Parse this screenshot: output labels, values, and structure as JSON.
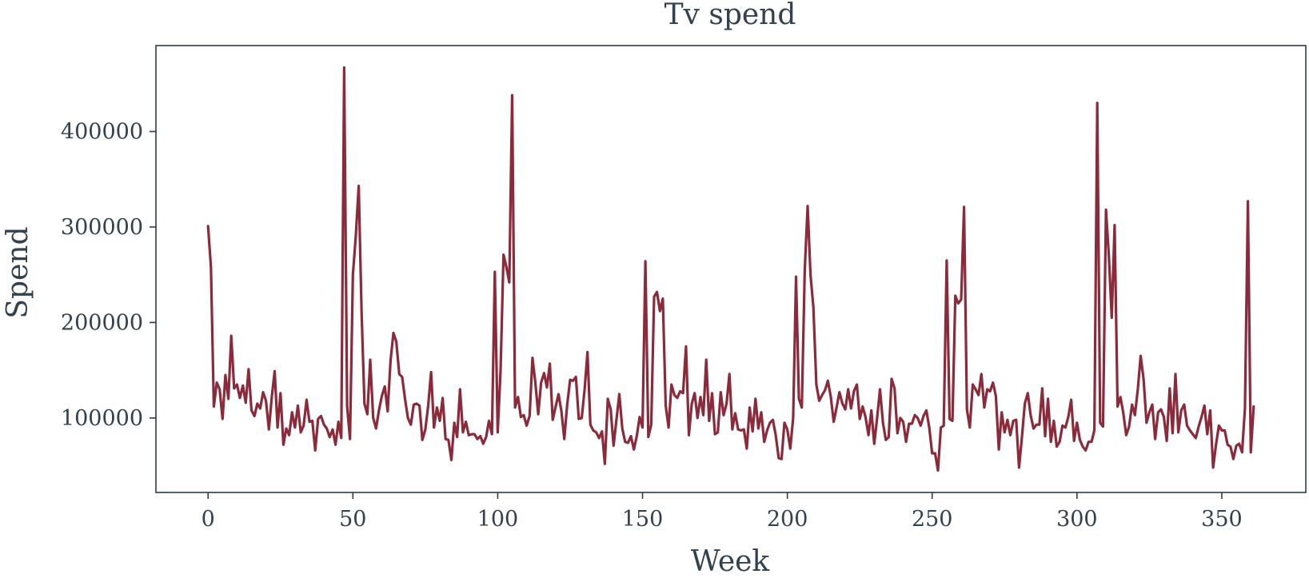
{
  "chart_data": {
    "type": "line",
    "title": "Tv spend",
    "xlabel": "Week",
    "ylabel": "Spend",
    "xlim": [
      -18,
      379
    ],
    "ylim": [
      22000,
      490000
    ],
    "xticks": [
      0,
      50,
      100,
      150,
      200,
      250,
      300,
      350
    ],
    "xtick_labels": [
      "0",
      "50",
      "100",
      "150",
      "200",
      "250",
      "300",
      "350"
    ],
    "yticks": [
      100000,
      200000,
      300000,
      400000
    ],
    "ytick_labels": [
      "100000",
      "200000",
      "300000",
      "400000"
    ],
    "grid": false,
    "colors": {
      "line": "#8b2a3a",
      "axis": "#2f3b48",
      "text": "#33414e"
    },
    "series": [
      {
        "x": [
          0,
          1,
          2,
          3,
          4,
          5,
          6,
          7,
          8,
          9,
          10,
          11,
          12,
          13,
          14,
          15,
          16,
          17,
          18,
          19,
          20,
          21,
          22,
          23,
          24,
          25,
          26,
          27,
          28,
          29,
          30,
          31,
          32,
          33,
          34,
          35,
          36,
          37,
          38,
          39,
          40,
          41,
          42,
          43,
          44,
          45,
          46,
          47,
          48,
          49,
          50,
          51,
          52,
          53,
          54,
          55,
          56,
          57,
          58,
          59,
          60,
          61,
          62,
          63,
          64,
          65,
          66,
          67,
          68,
          69,
          70,
          71,
          72,
          73,
          74,
          75,
          76,
          77,
          78,
          79,
          80,
          81,
          82,
          83,
          84,
          85,
          86,
          87,
          88,
          89,
          90,
          91,
          92,
          93,
          94,
          95,
          96,
          97,
          98,
          99,
          100,
          101,
          102,
          103,
          104,
          105,
          106,
          107,
          108,
          109,
          110,
          111,
          112,
          113,
          114,
          115,
          116,
          117,
          118,
          119,
          120,
          121,
          122,
          123,
          124,
          125,
          126,
          127,
          128,
          129,
          130,
          131,
          132,
          133,
          134,
          135,
          136,
          137,
          138,
          139,
          140,
          141,
          142,
          143,
          144,
          145,
          146,
          147,
          148,
          149,
          150,
          151,
          152,
          153,
          154,
          155,
          156,
          157,
          158,
          159,
          160,
          161,
          162,
          163,
          164,
          165,
          166,
          167,
          168,
          169,
          170,
          171,
          172,
          173,
          174,
          175,
          176,
          177,
          178,
          179,
          180,
          181,
          182,
          183,
          184,
          185,
          186,
          187,
          188,
          189,
          190,
          191,
          192,
          193,
          194,
          195,
          196,
          197,
          198,
          199,
          200,
          201,
          202,
          203,
          204,
          205,
          206,
          207,
          208,
          209,
          210,
          211,
          212,
          213,
          214,
          215,
          216,
          217,
          218,
          219,
          220,
          221,
          222,
          223,
          224,
          225,
          226,
          227,
          228,
          229,
          230,
          231,
          232,
          233,
          234,
          235,
          236,
          237,
          238,
          239,
          240,
          241,
          242,
          243,
          244,
          245,
          246,
          247,
          248,
          249,
          250,
          251,
          252,
          253,
          254,
          255,
          256,
          257,
          258,
          259,
          260,
          261,
          262,
          263,
          264,
          265,
          266,
          267,
          268,
          269,
          270,
          271,
          272,
          273,
          274,
          275,
          276,
          277,
          278,
          279,
          280,
          281,
          282,
          283,
          284,
          285,
          286,
          287,
          288,
          289,
          290,
          291,
          292,
          293,
          294,
          295,
          296,
          297,
          298,
          299,
          300,
          301,
          302,
          303,
          304,
          305,
          306,
          307,
          308,
          309,
          310,
          311,
          312,
          313,
          314,
          315,
          316,
          317,
          318,
          319,
          320,
          321,
          322,
          323,
          324,
          325,
          326,
          327,
          328,
          329,
          330,
          331,
          332,
          333,
          334,
          335,
          336,
          337,
          338,
          339,
          340,
          341,
          342,
          343,
          344,
          345,
          346,
          347,
          348,
          349,
          350,
          351,
          352,
          353,
          354,
          355,
          356,
          357,
          358,
          359,
          360,
          361
        ],
        "values": [
          301000,
          258000,
          112000,
          137000,
          130000,
          99000,
          145000,
          120000,
          186000,
          131000,
          135000,
          121000,
          134000,
          116000,
          151000,
          108000,
          102000,
          115000,
          110000,
          127000,
          118000,
          88000,
          122000,
          149000,
          90000,
          126000,
          72000,
          89000,
          82000,
          106000,
          90000,
          113000,
          85000,
          92000,
          119000,
          96000,
          97000,
          66000,
          99000,
          102000,
          93000,
          89000,
          80000,
          88000,
          72000,
          96000,
          79000,
          467000,
          112000,
          78000,
          250000,
          290000,
          343000,
          210000,
          115000,
          104000,
          161000,
          100000,
          89000,
          108000,
          123000,
          133000,
          107000,
          160000,
          189000,
          180000,
          146000,
          143000,
          120000,
          100000,
          93000,
          114000,
          115000,
          113000,
          77000,
          88000,
          113000,
          148000,
          90000,
          111000,
          97000,
          121000,
          78000,
          77000,
          56000,
          95000,
          80000,
          130000,
          85000,
          96000,
          82000,
          83000,
          83000,
          78000,
          81000,
          73000,
          80000,
          97000,
          83000,
          253000,
          85000,
          150000,
          271000,
          258000,
          242000,
          438000,
          111000,
          122000,
          101000,
          103000,
          92000,
          102000,
          163000,
          137000,
          104000,
          137000,
          147000,
          132000,
          157000,
          98000,
          112000,
          125000,
          107000,
          78000,
          114000,
          140000,
          139000,
          143000,
          99000,
          100000,
          130000,
          169000,
          93000,
          87000,
          85000,
          79000,
          86000,
          52000,
          120000,
          109000,
          71000,
          98000,
          125000,
          89000,
          75000,
          74000,
          81000,
          67000,
          81000,
          101000,
          90000,
          264000,
          80000,
          93000,
          227000,
          232000,
          212000,
          225000,
          113000,
          90000,
          135000,
          124000,
          121000,
          128000,
          126000,
          175000,
          82000,
          115000,
          126000,
          100000,
          122000,
          103000,
          161000,
          97000,
          126000,
          83000,
          85000,
          127000,
          103000,
          115000,
          146000,
          88000,
          105000,
          88000,
          87000,
          88000,
          68000,
          111000,
          86000,
          120000,
          89000,
          106000,
          75000,
          87000,
          95000,
          98000,
          82000,
          58000,
          57000,
          95000,
          88000,
          68000,
          100000,
          248000,
          120000,
          111000,
          255000,
          322000,
          250000,
          216000,
          135000,
          118000,
          124000,
          129000,
          139000,
          122000,
          96000,
          111000,
          127000,
          115000,
          109000,
          130000,
          110000,
          128000,
          135000,
          99000,
          112000,
          101000,
          82000,
          108000,
          73000,
          100000,
          130000,
          95000,
          77000,
          80000,
          141000,
          131000,
          84000,
          100000,
          96000,
          75000,
          94000,
          94000,
          103000,
          100000,
          92000,
          102000,
          108000,
          90000,
          63000,
          63000,
          45000,
          90000,
          92000,
          265000,
          99000,
          97000,
          228000,
          220000,
          224000,
          321000,
          109000,
          90000,
          135000,
          130000,
          124000,
          146000,
          111000,
          130000,
          128000,
          137000,
          123000,
          67000,
          106000,
          85000,
          98000,
          82000,
          97000,
          98000,
          48000,
          80000,
          115000,
          126000,
          103000,
          89000,
          93000,
          93000,
          131000,
          81000,
          120000,
          75000,
          97000,
          70000,
          75000,
          92000,
          90000,
          101000,
          119000,
          76000,
          95000,
          77000,
          70000,
          66000,
          75000,
          75000,
          87000,
          430000,
          95000,
          91000,
          318000,
          270000,
          205000,
          302000,
          112000,
          122000,
          105000,
          82000,
          91000,
          114000,
          103000,
          130000,
          165000,
          140000,
          95000,
          106000,
          114000,
          78000,
          106000,
          109000,
          101000,
          76000,
          131000,
          84000,
          146000,
          85000,
          108000,
          114000,
          92000,
          87000,
          83000,
          79000,
          91000,
          101000,
          113000,
          83000,
          108000,
          48000,
          72000,
          92000,
          87000,
          87000,
          72000,
          70000,
          57000,
          71000,
          73000,
          64000,
          110000,
          327000,
          64000,
          112000
        ]
      }
    ]
  }
}
